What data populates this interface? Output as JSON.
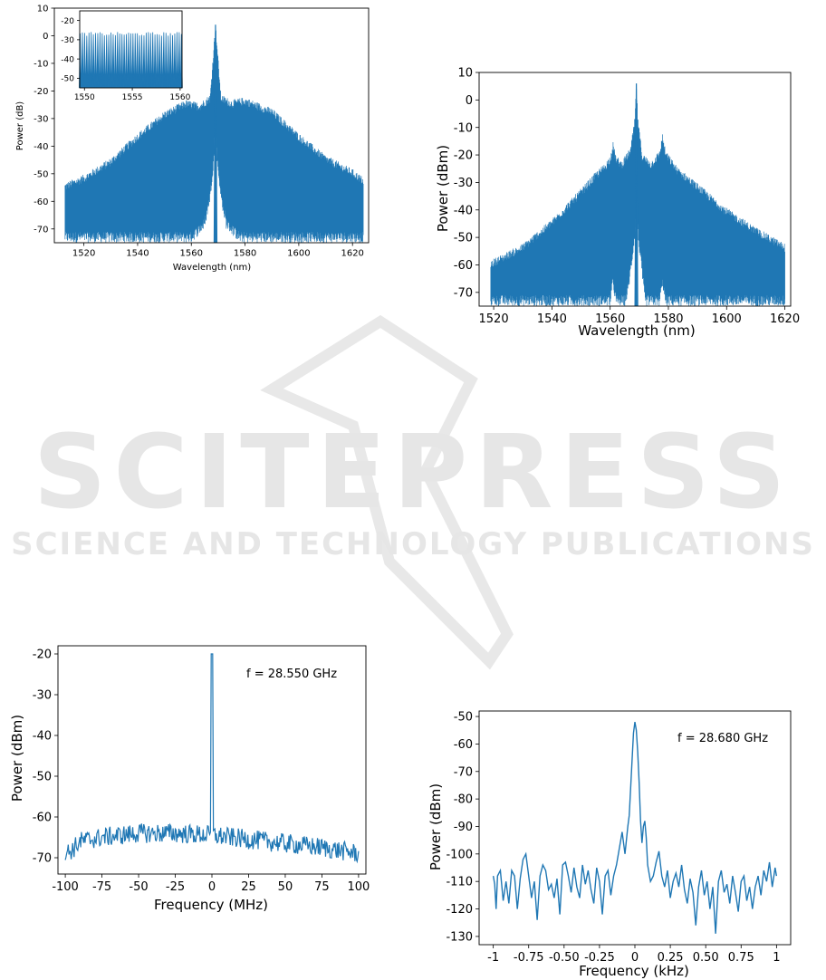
{
  "watermark": {
    "title": "SCITEPRESS",
    "subtitle": "SCIENCE AND TECHNOLOGY PUBLICATIONS",
    "color": "#e6e6e6"
  },
  "line_color": "#1f77b4",
  "chart_data": [
    {
      "id": "spectrum-top-left",
      "type": "line",
      "xlabel": "Wavelength (nm)",
      "ylabel": "Power (dB)",
      "xlim": [
        1509,
        1626
      ],
      "ylim": [
        -75,
        10
      ],
      "xticks": [
        1520,
        1540,
        1560,
        1580,
        1600,
        1620
      ],
      "yticks": [
        -70,
        -60,
        -50,
        -40,
        -30,
        -20,
        -10,
        0,
        10
      ],
      "x_extent": [
        1513,
        1624
      ],
      "peak": {
        "x": 1569,
        "y": 4
      },
      "envelope_top": [
        {
          "x": 1513,
          "y": -54
        },
        {
          "x": 1520,
          "y": -51
        },
        {
          "x": 1530,
          "y": -45
        },
        {
          "x": 1540,
          "y": -36
        },
        {
          "x": 1550,
          "y": -28
        },
        {
          "x": 1558,
          "y": -24
        },
        {
          "x": 1563,
          "y": -25
        },
        {
          "x": 1567,
          "y": -22
        },
        {
          "x": 1569,
          "y": 4
        },
        {
          "x": 1571,
          "y": -22
        },
        {
          "x": 1575,
          "y": -24
        },
        {
          "x": 1580,
          "y": -23
        },
        {
          "x": 1590,
          "y": -27
        },
        {
          "x": 1600,
          "y": -36
        },
        {
          "x": 1610,
          "y": -44
        },
        {
          "x": 1620,
          "y": -49
        },
        {
          "x": 1624,
          "y": -52
        }
      ],
      "envelope_bottom": [
        {
          "x": 1513,
          "y": -75
        },
        {
          "x": 1560,
          "y": -75
        },
        {
          "x": 1565,
          "y": -70
        },
        {
          "x": 1567,
          "y": -60
        },
        {
          "x": 1568.5,
          "y": -45
        },
        {
          "x": 1569,
          "y": -20
        },
        {
          "x": 1569.5,
          "y": -45
        },
        {
          "x": 1571,
          "y": -60
        },
        {
          "x": 1573,
          "y": -70
        },
        {
          "x": 1578,
          "y": -75
        },
        {
          "x": 1624,
          "y": -75
        }
      ],
      "inset": {
        "xlim": [
          1549.5,
          1560.2
        ],
        "ylim": [
          -55,
          -15
        ],
        "xticks": [
          1550,
          1555,
          1560
        ],
        "yticks": [
          -50,
          -40,
          -30,
          -20
        ],
        "comb_top": -27,
        "comb_bottom": -55,
        "comb_spacing": 0.23
      }
    },
    {
      "id": "spectrum-top-right",
      "type": "line",
      "xlabel": "Wavelength (nm)",
      "ylabel": "Power (dBm)",
      "xlim": [
        1515,
        1622
      ],
      "ylim": [
        -75,
        10
      ],
      "xticks": [
        1520,
        1540,
        1560,
        1580,
        1600,
        1620
      ],
      "yticks": [
        -70,
        -60,
        -50,
        -40,
        -30,
        -20,
        -10,
        0,
        10
      ],
      "x_extent": [
        1519,
        1620
      ],
      "peak": {
        "x": 1569,
        "y": 6
      },
      "envelope_top": [
        {
          "x": 1519,
          "y": -59
        },
        {
          "x": 1530,
          "y": -53
        },
        {
          "x": 1540,
          "y": -44
        },
        {
          "x": 1550,
          "y": -33
        },
        {
          "x": 1555,
          "y": -27
        },
        {
          "x": 1558,
          "y": -24
        },
        {
          "x": 1560,
          "y": -21
        },
        {
          "x": 1561,
          "y": -16
        },
        {
          "x": 1562,
          "y": -21
        },
        {
          "x": 1564,
          "y": -23
        },
        {
          "x": 1567,
          "y": -18
        },
        {
          "x": 1568.5,
          "y": -7
        },
        {
          "x": 1569,
          "y": 6
        },
        {
          "x": 1569.5,
          "y": -7
        },
        {
          "x": 1571,
          "y": -20
        },
        {
          "x": 1574,
          "y": -23
        },
        {
          "x": 1577,
          "y": -19
        },
        {
          "x": 1578,
          "y": -13
        },
        {
          "x": 1579,
          "y": -19
        },
        {
          "x": 1583,
          "y": -25
        },
        {
          "x": 1590,
          "y": -31
        },
        {
          "x": 1600,
          "y": -40
        },
        {
          "x": 1610,
          "y": -47
        },
        {
          "x": 1620,
          "y": -53
        }
      ],
      "envelope_bottom": [
        {
          "x": 1519,
          "y": -75
        },
        {
          "x": 1560,
          "y": -75
        },
        {
          "x": 1561,
          "y": -68
        },
        {
          "x": 1562,
          "y": -75
        },
        {
          "x": 1565,
          "y": -75
        },
        {
          "x": 1566,
          "y": -72
        },
        {
          "x": 1567.5,
          "y": -60
        },
        {
          "x": 1568.5,
          "y": -50
        },
        {
          "x": 1569,
          "y": -30
        },
        {
          "x": 1569.5,
          "y": -50
        },
        {
          "x": 1570.5,
          "y": -60
        },
        {
          "x": 1572,
          "y": -75
        },
        {
          "x": 1577,
          "y": -75
        },
        {
          "x": 1578,
          "y": -68
        },
        {
          "x": 1579,
          "y": -75
        },
        {
          "x": 1620,
          "y": -75
        }
      ]
    },
    {
      "id": "rf-spectrum-bottom-left",
      "type": "line",
      "xlabel": "Frequency (MHz)",
      "ylabel": "Power (dBm)",
      "annotation": "f = 28.550 GHz",
      "xlim": [
        -105,
        105
      ],
      "ylim": [
        -74,
        -18
      ],
      "xticks": [
        -100,
        -75,
        -50,
        -25,
        0,
        25,
        50,
        75,
        100
      ],
      "yticks": [
        -70,
        -60,
        -50,
        -40,
        -30,
        -20
      ],
      "x_extent": [
        -100,
        100
      ],
      "peak": {
        "x": 0,
        "y": -20
      },
      "noise_trend": [
        {
          "x": -100,
          "y": -69
        },
        {
          "x": -95,
          "y": -68
        },
        {
          "x": -90,
          "y": -66
        },
        {
          "x": -75,
          "y": -65
        },
        {
          "x": -50,
          "y": -64
        },
        {
          "x": -25,
          "y": -64
        },
        {
          "x": 0,
          "y": -64.5
        },
        {
          "x": 25,
          "y": -65.5
        },
        {
          "x": 50,
          "y": -66.5
        },
        {
          "x": 75,
          "y": -67.5
        },
        {
          "x": 100,
          "y": -69
        }
      ]
    },
    {
      "id": "rf-spectrum-bottom-right",
      "type": "line",
      "xlabel": "Frequency (kHz)",
      "ylabel": "Power (dBm)",
      "annotation": "f = 28.680 GHz",
      "xlim": [
        -1.1,
        1.1
      ],
      "ylim": [
        -133,
        -48
      ],
      "xticks": [
        -1.0,
        -0.75,
        -0.5,
        -0.25,
        0.0,
        0.25,
        0.5,
        0.75,
        1.0
      ],
      "yticks": [
        -130,
        -120,
        -110,
        -100,
        -90,
        -80,
        -70,
        -60,
        -50
      ],
      "points": [
        {
          "x": -1.0,
          "y": -108
        },
        {
          "x": -0.99,
          "y": -111
        },
        {
          "x": -0.98,
          "y": -120
        },
        {
          "x": -0.97,
          "y": -108
        },
        {
          "x": -0.95,
          "y": -106
        },
        {
          "x": -0.93,
          "y": -117
        },
        {
          "x": -0.91,
          "y": -110
        },
        {
          "x": -0.89,
          "y": -118
        },
        {
          "x": -0.87,
          "y": -106
        },
        {
          "x": -0.85,
          "y": -108
        },
        {
          "x": -0.83,
          "y": -120
        },
        {
          "x": -0.81,
          "y": -109
        },
        {
          "x": -0.79,
          "y": -102
        },
        {
          "x": -0.77,
          "y": -100
        },
        {
          "x": -0.75,
          "y": -108
        },
        {
          "x": -0.73,
          "y": -116
        },
        {
          "x": -0.71,
          "y": -110
        },
        {
          "x": -0.69,
          "y": -124
        },
        {
          "x": -0.67,
          "y": -108
        },
        {
          "x": -0.65,
          "y": -104
        },
        {
          "x": -0.63,
          "y": -106
        },
        {
          "x": -0.61,
          "y": -113
        },
        {
          "x": -0.59,
          "y": -111
        },
        {
          "x": -0.57,
          "y": -116
        },
        {
          "x": -0.55,
          "y": -109
        },
        {
          "x": -0.53,
          "y": -122
        },
        {
          "x": -0.51,
          "y": -104
        },
        {
          "x": -0.49,
          "y": -103
        },
        {
          "x": -0.47,
          "y": -108
        },
        {
          "x": -0.45,
          "y": -114
        },
        {
          "x": -0.43,
          "y": -105
        },
        {
          "x": -0.41,
          "y": -112
        },
        {
          "x": -0.39,
          "y": -116
        },
        {
          "x": -0.37,
          "y": -104
        },
        {
          "x": -0.35,
          "y": -111
        },
        {
          "x": -0.33,
          "y": -106
        },
        {
          "x": -0.31,
          "y": -113
        },
        {
          "x": -0.29,
          "y": -118
        },
        {
          "x": -0.27,
          "y": -105
        },
        {
          "x": -0.25,
          "y": -110
        },
        {
          "x": -0.23,
          "y": -122
        },
        {
          "x": -0.21,
          "y": -108
        },
        {
          "x": -0.19,
          "y": -106
        },
        {
          "x": -0.17,
          "y": -115
        },
        {
          "x": -0.15,
          "y": -108
        },
        {
          "x": -0.13,
          "y": -104
        },
        {
          "x": -0.11,
          "y": -98
        },
        {
          "x": -0.09,
          "y": -92
        },
        {
          "x": -0.07,
          "y": -100
        },
        {
          "x": -0.05,
          "y": -90
        },
        {
          "x": -0.04,
          "y": -86
        },
        {
          "x": -0.03,
          "y": -76
        },
        {
          "x": -0.02,
          "y": -66
        },
        {
          "x": -0.01,
          "y": -56
        },
        {
          "x": 0.0,
          "y": -52
        },
        {
          "x": 0.01,
          "y": -55
        },
        {
          "x": 0.02,
          "y": -63
        },
        {
          "x": 0.03,
          "y": -74
        },
        {
          "x": 0.04,
          "y": -88
        },
        {
          "x": 0.05,
          "y": -96
        },
        {
          "x": 0.06,
          "y": -90
        },
        {
          "x": 0.07,
          "y": -88
        },
        {
          "x": 0.08,
          "y": -94
        },
        {
          "x": 0.09,
          "y": -104
        },
        {
          "x": 0.11,
          "y": -110
        },
        {
          "x": 0.13,
          "y": -108
        },
        {
          "x": 0.15,
          "y": -103
        },
        {
          "x": 0.17,
          "y": -99
        },
        {
          "x": 0.19,
          "y": -108
        },
        {
          "x": 0.21,
          "y": -112
        },
        {
          "x": 0.23,
          "y": -106
        },
        {
          "x": 0.25,
          "y": -116
        },
        {
          "x": 0.27,
          "y": -110
        },
        {
          "x": 0.29,
          "y": -107
        },
        {
          "x": 0.31,
          "y": -112
        },
        {
          "x": 0.33,
          "y": -104
        },
        {
          "x": 0.35,
          "y": -113
        },
        {
          "x": 0.37,
          "y": -118
        },
        {
          "x": 0.39,
          "y": -109
        },
        {
          "x": 0.41,
          "y": -114
        },
        {
          "x": 0.43,
          "y": -126
        },
        {
          "x": 0.45,
          "y": -112
        },
        {
          "x": 0.47,
          "y": -106
        },
        {
          "x": 0.49,
          "y": -115
        },
        {
          "x": 0.51,
          "y": -110
        },
        {
          "x": 0.53,
          "y": -120
        },
        {
          "x": 0.55,
          "y": -112
        },
        {
          "x": 0.57,
          "y": -129
        },
        {
          "x": 0.59,
          "y": -110
        },
        {
          "x": 0.61,
          "y": -106
        },
        {
          "x": 0.63,
          "y": -114
        },
        {
          "x": 0.65,
          "y": -111
        },
        {
          "x": 0.67,
          "y": -118
        },
        {
          "x": 0.69,
          "y": -108
        },
        {
          "x": 0.71,
          "y": -114
        },
        {
          "x": 0.73,
          "y": -121
        },
        {
          "x": 0.75,
          "y": -110
        },
        {
          "x": 0.77,
          "y": -108
        },
        {
          "x": 0.79,
          "y": -117
        },
        {
          "x": 0.81,
          "y": -112
        },
        {
          "x": 0.83,
          "y": -120
        },
        {
          "x": 0.85,
          "y": -112
        },
        {
          "x": 0.87,
          "y": -108
        },
        {
          "x": 0.89,
          "y": -115
        },
        {
          "x": 0.91,
          "y": -106
        },
        {
          "x": 0.93,
          "y": -110
        },
        {
          "x": 0.95,
          "y": -103
        },
        {
          "x": 0.97,
          "y": -112
        },
        {
          "x": 0.99,
          "y": -105
        },
        {
          "x": 1.0,
          "y": -108
        }
      ]
    }
  ]
}
